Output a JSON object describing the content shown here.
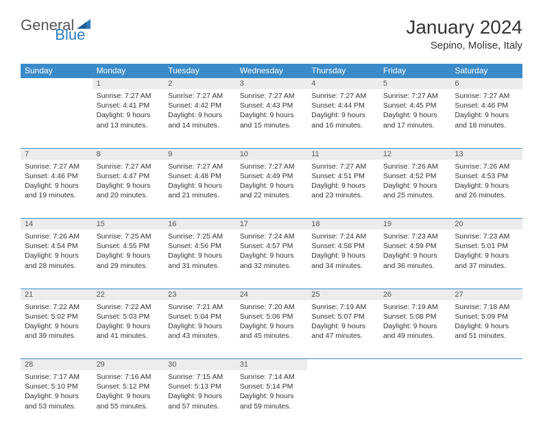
{
  "brand": {
    "part1": "General",
    "part2": "Blue"
  },
  "title": "January 2024",
  "location": "Sepino, Molise, Italy",
  "colors": {
    "header_bg": "#3b8bc9",
    "header_text": "#ffffff",
    "daynum_bg": "#ececec",
    "border": "#3b8bc9",
    "brand_gray": "#555555",
    "brand_blue": "#2b7bbf"
  },
  "weekdays": [
    "Sunday",
    "Monday",
    "Tuesday",
    "Wednesday",
    "Thursday",
    "Friday",
    "Saturday"
  ],
  "weeks": [
    {
      "nums": [
        "",
        "1",
        "2",
        "3",
        "4",
        "5",
        "6"
      ],
      "cells": [
        "",
        "Sunrise: 7:27 AM\nSunset: 4:41 PM\nDaylight: 9 hours and 13 minutes.",
        "Sunrise: 7:27 AM\nSunset: 4:42 PM\nDaylight: 9 hours and 14 minutes.",
        "Sunrise: 7:27 AM\nSunset: 4:43 PM\nDaylight: 9 hours and 15 minutes.",
        "Sunrise: 7:27 AM\nSunset: 4:44 PM\nDaylight: 9 hours and 16 minutes.",
        "Sunrise: 7:27 AM\nSunset: 4:45 PM\nDaylight: 9 hours and 17 minutes.",
        "Sunrise: 7:27 AM\nSunset: 4:46 PM\nDaylight: 9 hours and 18 minutes."
      ]
    },
    {
      "nums": [
        "7",
        "8",
        "9",
        "10",
        "11",
        "12",
        "13"
      ],
      "cells": [
        "Sunrise: 7:27 AM\nSunset: 4:46 PM\nDaylight: 9 hours and 19 minutes.",
        "Sunrise: 7:27 AM\nSunset: 4:47 PM\nDaylight: 9 hours and 20 minutes.",
        "Sunrise: 7:27 AM\nSunset: 4:48 PM\nDaylight: 9 hours and 21 minutes.",
        "Sunrise: 7:27 AM\nSunset: 4:49 PM\nDaylight: 9 hours and 22 minutes.",
        "Sunrise: 7:27 AM\nSunset: 4:51 PM\nDaylight: 9 hours and 23 minutes.",
        "Sunrise: 7:26 AM\nSunset: 4:52 PM\nDaylight: 9 hours and 25 minutes.",
        "Sunrise: 7:26 AM\nSunset: 4:53 PM\nDaylight: 9 hours and 26 minutes."
      ]
    },
    {
      "nums": [
        "14",
        "15",
        "16",
        "17",
        "18",
        "19",
        "20"
      ],
      "cells": [
        "Sunrise: 7:26 AM\nSunset: 4:54 PM\nDaylight: 9 hours and 28 minutes.",
        "Sunrise: 7:25 AM\nSunset: 4:55 PM\nDaylight: 9 hours and 29 minutes.",
        "Sunrise: 7:25 AM\nSunset: 4:56 PM\nDaylight: 9 hours and 31 minutes.",
        "Sunrise: 7:24 AM\nSunset: 4:57 PM\nDaylight: 9 hours and 32 minutes.",
        "Sunrise: 7:24 AM\nSunset: 4:58 PM\nDaylight: 9 hours and 34 minutes.",
        "Sunrise: 7:23 AM\nSunset: 4:59 PM\nDaylight: 9 hours and 36 minutes.",
        "Sunrise: 7:23 AM\nSunset: 5:01 PM\nDaylight: 9 hours and 37 minutes."
      ]
    },
    {
      "nums": [
        "21",
        "22",
        "23",
        "24",
        "25",
        "26",
        "27"
      ],
      "cells": [
        "Sunrise: 7:22 AM\nSunset: 5:02 PM\nDaylight: 9 hours and 39 minutes.",
        "Sunrise: 7:22 AM\nSunset: 5:03 PM\nDaylight: 9 hours and 41 minutes.",
        "Sunrise: 7:21 AM\nSunset: 5:04 PM\nDaylight: 9 hours and 43 minutes.",
        "Sunrise: 7:20 AM\nSunset: 5:06 PM\nDaylight: 9 hours and 45 minutes.",
        "Sunrise: 7:19 AM\nSunset: 5:07 PM\nDaylight: 9 hours and 47 minutes.",
        "Sunrise: 7:19 AM\nSunset: 5:08 PM\nDaylight: 9 hours and 49 minutes.",
        "Sunrise: 7:18 AM\nSunset: 5:09 PM\nDaylight: 9 hours and 51 minutes."
      ]
    },
    {
      "nums": [
        "28",
        "29",
        "30",
        "31",
        "",
        "",
        ""
      ],
      "cells": [
        "Sunrise: 7:17 AM\nSunset: 5:10 PM\nDaylight: 9 hours and 53 minutes.",
        "Sunrise: 7:16 AM\nSunset: 5:12 PM\nDaylight: 9 hours and 55 minutes.",
        "Sunrise: 7:15 AM\nSunset: 5:13 PM\nDaylight: 9 hours and 57 minutes.",
        "Sunrise: 7:14 AM\nSunset: 5:14 PM\nDaylight: 9 hours and 59 minutes.",
        "",
        "",
        ""
      ]
    }
  ]
}
